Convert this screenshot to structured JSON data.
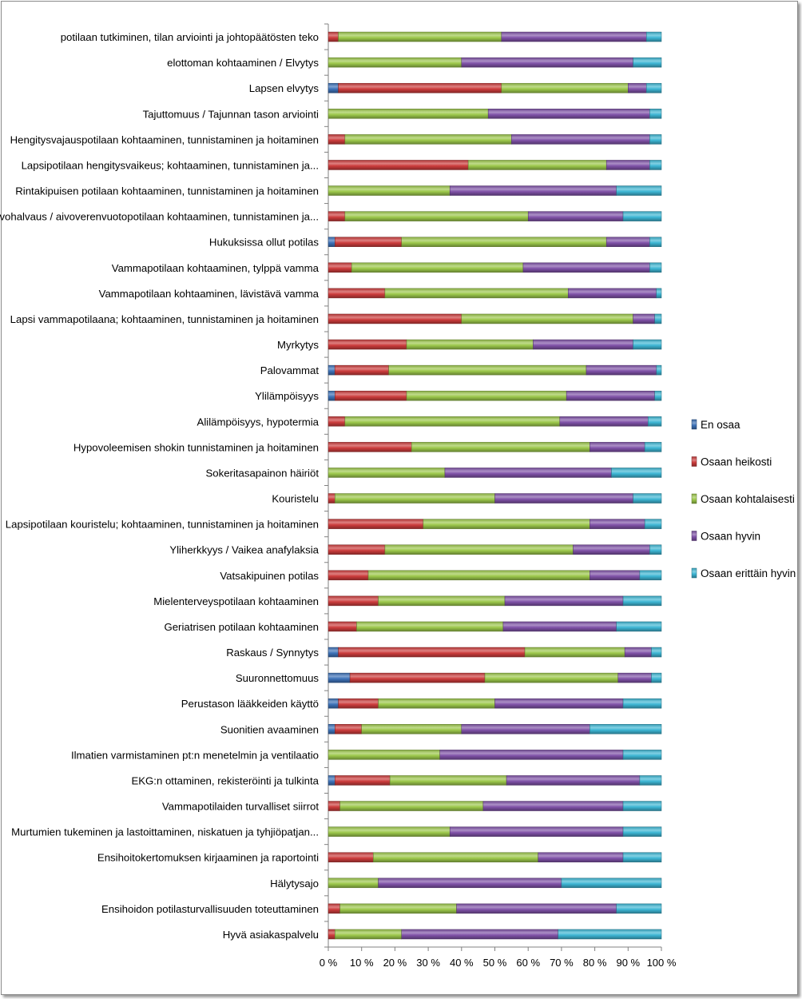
{
  "chart_data": {
    "type": "bar",
    "orientation": "horizontal",
    "stacked": "percent",
    "title": "",
    "xlabel": "",
    "ylabel": "",
    "xlim": [
      0,
      100
    ],
    "x_ticks": [
      "0 %",
      "10 %",
      "20 %",
      "30 %",
      "40 %",
      "50 %",
      "60 %",
      "70 %",
      "80 %",
      "90 %",
      "100 %"
    ],
    "legend_position": "right",
    "categories": [
      "potilaan tutkiminen, tilan arviointi ja johtopäätösten teko",
      "elottoman kohtaaminen / Elvytys",
      "Lapsen elvytys",
      "Tajuttomuus / Tajunnan tason arviointi",
      "Hengitysvajauspotilaan kohtaaminen, tunnistaminen ja hoitaminen",
      "Lapsipotilaan hengitysvaikeus;  kohtaaminen, tunnistaminen ja...",
      "Rintakipuisen potilaan  kohtaaminen, tunnistaminen ja hoitaminen",
      "Aivohalvaus / aivoverenvuotopotilaan kohtaaminen, tunnistaminen ja...",
      "Hukuksissa ollut potilas",
      "Vammapotilaan kohtaaminen, tylppä vamma",
      "Vammapotilaan kohtaaminen, lävistävä vamma",
      "Lapsi vammapotilaana; kohtaaminen, tunnistaminen ja hoitaminen",
      "Myrkytys",
      "Palovammat",
      "Ylilämpöisyys",
      "Alilämpöisyys, hypotermia",
      "Hypovoleemisen shokin tunnistaminen ja hoitaminen",
      "Sokeritasapainon häiriöt",
      "Kouristelu",
      "Lapsipotilaan kouristelu; kohtaaminen, tunnistaminen ja hoitaminen",
      "Yliherkkyys / Vaikea anafylaksia",
      "Vatsakipuinen potilas",
      "Mielenterveyspotilaan kohtaaminen",
      "Geriatrisen potilaan kohtaaminen",
      "Raskaus / Synnytys",
      "Suuronnettomuus",
      "Perustason lääkkeiden käyttö",
      "Suonitien avaaminen",
      "Ilmatien varmistaminen pt:n menetelmin ja ventilaatio",
      "EKG:n ottaminen, rekisteröinti ja tulkinta",
      "Vammapotilaiden turvalliset siirrot",
      "Murtumien tukeminen ja lastoittaminen, niskatuen ja tyhjiöpatjan...",
      "Ensihoitokertomuksen kirjaaminen ja raportointi",
      "Hälytysajo",
      "Ensihoidon potilasturvallisuuden toteuttaminen",
      "Hyvä asiakaspalvelu"
    ],
    "series": [
      {
        "name": "En osaa",
        "color": "#3d72b8",
        "values": [
          0,
          0,
          3,
          0,
          0,
          0,
          0,
          0,
          2,
          0,
          0,
          0,
          0,
          2,
          2,
          0,
          0,
          0,
          0,
          0,
          0,
          0,
          0,
          0,
          3,
          6.5,
          3,
          2,
          0,
          2,
          0,
          0,
          0,
          0,
          0,
          0
        ]
      },
      {
        "name": "Osaan heikosti",
        "color": "#cc3c3c",
        "values": [
          3,
          0,
          49,
          0,
          5,
          42,
          0,
          5,
          20,
          7,
          17,
          40,
          23.5,
          16.5,
          21.5,
          5,
          25,
          0,
          2,
          28.5,
          17,
          12,
          15,
          8.5,
          56,
          40.5,
          12,
          8,
          0,
          16.5,
          3.5,
          0,
          13.5,
          0,
          3.5,
          2
        ]
      },
      {
        "name": "Osaan kohtalaisesti",
        "color": "#9cc84b",
        "values": [
          49,
          40,
          38,
          48,
          50,
          41.5,
          36.5,
          55,
          61.5,
          51.5,
          55,
          51.5,
          38,
          60.5,
          48,
          64.5,
          53.5,
          35,
          48,
          50,
          56.5,
          66.5,
          38,
          44,
          30,
          40,
          35,
          30,
          33.5,
          35,
          43,
          36.5,
          49.5,
          15,
          35,
          20
        ]
      },
      {
        "name": "Osaan hyvin",
        "color": "#8052a8",
        "values": [
          43.5,
          51.5,
          5.5,
          48.5,
          41.5,
          13,
          50,
          28.5,
          13,
          38,
          26.5,
          6.5,
          30,
          21.5,
          26.5,
          26.5,
          16.5,
          50,
          41.5,
          16.5,
          23,
          15,
          35.5,
          34,
          8,
          10,
          38.5,
          38.5,
          55,
          40,
          42,
          52,
          25.5,
          55,
          48,
          47
        ]
      },
      {
        "name": "Osaan erittäin hyvin",
        "color": "#3db6d4",
        "values": [
          4.5,
          8.5,
          4.5,
          3.5,
          3.5,
          3.5,
          13.5,
          11.5,
          3.5,
          3.5,
          1.5,
          2,
          8.5,
          1.5,
          2,
          4,
          5,
          15,
          8.5,
          5,
          3.5,
          6.5,
          11.5,
          13.5,
          3,
          3,
          11.5,
          21.5,
          11.5,
          6.5,
          11.5,
          11.5,
          11.5,
          30,
          13.5,
          31
        ]
      }
    ]
  }
}
